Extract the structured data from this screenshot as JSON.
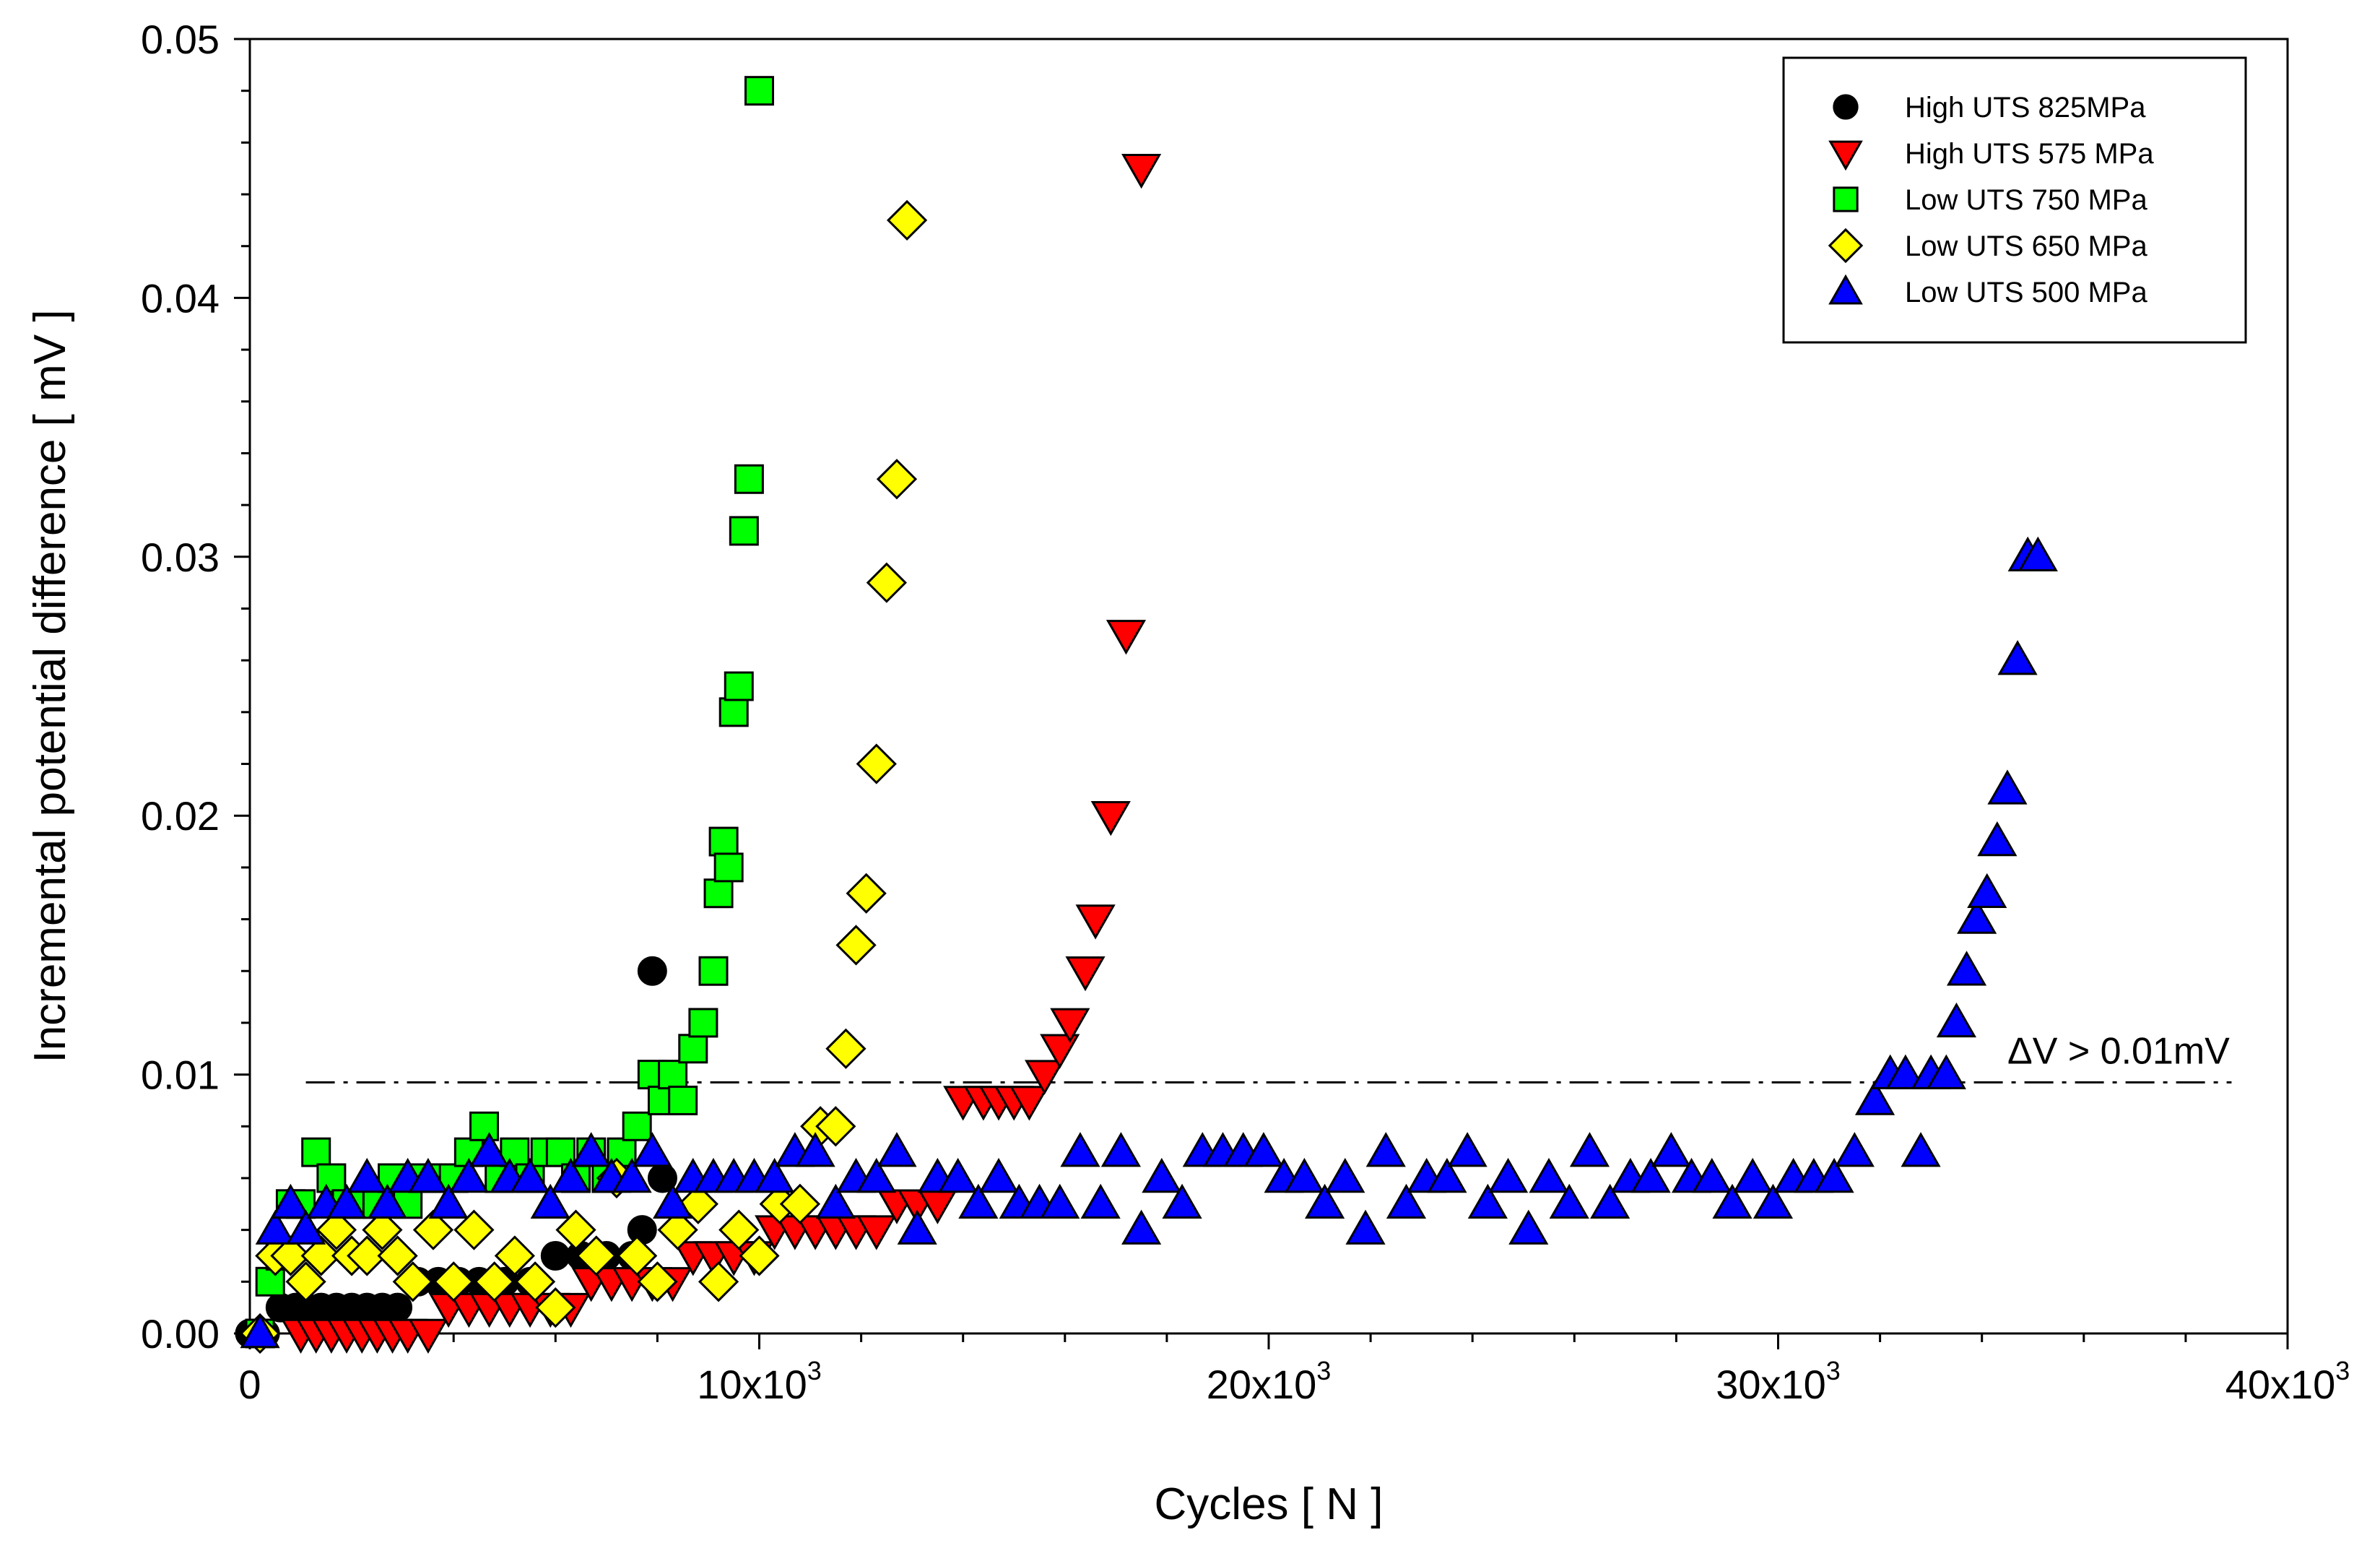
{
  "chart_data": {
    "type": "scatter",
    "title": "",
    "xlabel": "Cycles [ N ]",
    "ylabel": "Incremental potential difference  [ mV ]",
    "xlim": [
      0,
      40000
    ],
    "ylim": [
      0,
      0.05
    ],
    "x_ticks": [
      {
        "value": 0,
        "label": "0",
        "exp": ""
      },
      {
        "value": 10000,
        "label": "10x10",
        "exp": "3"
      },
      {
        "value": 20000,
        "label": "20x10",
        "exp": "3"
      },
      {
        "value": 30000,
        "label": "30x10",
        "exp": "3"
      },
      {
        "value": 40000,
        "label": "40x10",
        "exp": "3"
      }
    ],
    "y_ticks": [
      {
        "value": 0,
        "label": "0.00"
      },
      {
        "value": 0.01,
        "label": "0.01"
      },
      {
        "value": 0.02,
        "label": "0.02"
      },
      {
        "value": 0.03,
        "label": "0.03"
      },
      {
        "value": 0.04,
        "label": "0.04"
      },
      {
        "value": 0.05,
        "label": "0.05"
      }
    ],
    "threshold": {
      "y": 0.0097,
      "x_start": 1100,
      "x_end": 38900,
      "label": "ΔV > 0.01mV"
    },
    "legend_position": "top-right",
    "series": [
      {
        "name": "High UTS 825MPa",
        "marker": "circle",
        "color": "#000000",
        "x": [
          0,
          300,
          600,
          900,
          1100,
          1400,
          1700,
          2000,
          2300,
          2600,
          2900,
          3300,
          3700,
          4100,
          4500,
          5000,
          5500,
          6000,
          6500,
          7000,
          7500,
          7700,
          7900,
          8100
        ],
        "y": [
          0,
          0,
          0.001,
          0.001,
          0.001,
          0.001,
          0.001,
          0.001,
          0.001,
          0.001,
          0.001,
          0.002,
          0.002,
          0.002,
          0.002,
          0.002,
          0.002,
          0.003,
          0.003,
          0.003,
          0.003,
          0.004,
          0.014,
          0.006
        ]
      },
      {
        "name": "High UTS 575 MPa",
        "marker": "triangle-down",
        "color": "#ff0000",
        "x": [
          1000,
          1300,
          1600,
          1900,
          2200,
          2500,
          2800,
          3100,
          3500,
          3900,
          4300,
          4700,
          5100,
          5500,
          5900,
          6300,
          6700,
          7100,
          7500,
          7900,
          8300,
          8700,
          9100,
          9500,
          9900,
          10300,
          10700,
          11100,
          11500,
          11900,
          12300,
          12700,
          13100,
          13500,
          14000,
          14400,
          14700,
          15000,
          15300,
          15600,
          15900,
          16100,
          16400,
          16600,
          16900,
          17200,
          17500
        ],
        "y": [
          0,
          0,
          0,
          0,
          0,
          0,
          0,
          0,
          0,
          0.001,
          0.001,
          0.001,
          0.001,
          0.001,
          0.001,
          0.001,
          0.002,
          0.002,
          0.002,
          0.002,
          0.002,
          0.003,
          0.003,
          0.003,
          0.003,
          0.004,
          0.004,
          0.004,
          0.004,
          0.004,
          0.004,
          0.005,
          0.005,
          0.005,
          0.009,
          0.009,
          0.009,
          0.009,
          0.009,
          0.01,
          0.011,
          0.012,
          0.014,
          0.016,
          0.02,
          0.027,
          0.045
        ]
      },
      {
        "name": "Low UTS 750 MPa",
        "marker": "square",
        "color": "#00ff00",
        "x": [
          200,
          400,
          600,
          800,
          1000,
          1300,
          1600,
          1900,
          2200,
          2500,
          2800,
          3100,
          3400,
          3700,
          4000,
          4300,
          4600,
          4900,
          5200,
          5500,
          5800,
          6100,
          6400,
          6700,
          7000,
          7300,
          7600,
          7900,
          8100,
          8300,
          8500,
          8700,
          8900,
          9100,
          9200,
          9300,
          9400,
          9500,
          9600,
          9700,
          9800,
          10000
        ],
        "y": [
          0,
          0.002,
          0.003,
          0.005,
          0.005,
          0.007,
          0.006,
          0.005,
          0.005,
          0.005,
          0.006,
          0.005,
          0.006,
          0.006,
          0.006,
          0.007,
          0.008,
          0.006,
          0.007,
          0.006,
          0.007,
          0.007,
          0.006,
          0.007,
          0.006,
          0.007,
          0.008,
          0.01,
          0.009,
          0.01,
          0.009,
          0.011,
          0.012,
          0.014,
          0.017,
          0.019,
          0.018,
          0.024,
          0.025,
          0.031,
          0.033,
          0.048
        ]
      },
      {
        "name": "Low UTS 650 MPa",
        "marker": "diamond",
        "color": "#ffff00",
        "x": [
          200,
          500,
          800,
          1100,
          1400,
          1700,
          2000,
          2300,
          2600,
          2900,
          3200,
          3600,
          4000,
          4400,
          4800,
          5200,
          5600,
          6000,
          6400,
          6800,
          7200,
          7600,
          8000,
          8400,
          8800,
          9200,
          9600,
          10000,
          10400,
          10800,
          11200,
          11500,
          11700,
          11900,
          12100,
          12300,
          12500,
          12700,
          12900
        ],
        "y": [
          0,
          0.003,
          0.003,
          0.002,
          0.003,
          0.004,
          0.003,
          0.003,
          0.004,
          0.003,
          0.002,
          0.004,
          0.002,
          0.004,
          0.002,
          0.003,
          0.002,
          0.001,
          0.004,
          0.003,
          0.006,
          0.003,
          0.002,
          0.004,
          0.005,
          0.002,
          0.004,
          0.003,
          0.005,
          0.005,
          0.008,
          0.008,
          0.011,
          0.015,
          0.017,
          0.022,
          0.029,
          0.033,
          0.043
        ]
      },
      {
        "name": "Low UTS 500 MPa",
        "marker": "triangle-up",
        "color": "#0000ff",
        "x": [
          200,
          500,
          800,
          1100,
          1500,
          1900,
          2300,
          2700,
          3100,
          3500,
          3900,
          4300,
          4700,
          5100,
          5500,
          5900,
          6300,
          6700,
          7100,
          7500,
          7900,
          8300,
          8700,
          9100,
          9500,
          9900,
          10300,
          10700,
          11100,
          11500,
          11900,
          12300,
          12700,
          13100,
          13500,
          13900,
          14300,
          14700,
          15100,
          15500,
          15900,
          16300,
          16700,
          17100,
          17500,
          17900,
          18300,
          18700,
          19100,
          19500,
          19900,
          20300,
          20700,
          21100,
          21500,
          21900,
          22300,
          22700,
          23100,
          23500,
          23900,
          24300,
          24700,
          25100,
          25500,
          25900,
          26300,
          26700,
          27100,
          27500,
          27900,
          28300,
          28700,
          29100,
          29500,
          29900,
          30300,
          30700,
          31100,
          31500,
          31900,
          32200,
          32500,
          32800,
          33000,
          33300,
          33500,
          33700,
          33900,
          34100,
          34300,
          34500,
          34700,
          34900,
          35100
        ],
        "y": [
          0,
          0.004,
          0.005,
          0.004,
          0.005,
          0.005,
          0.006,
          0.005,
          0.006,
          0.006,
          0.005,
          0.006,
          0.007,
          0.006,
          0.006,
          0.005,
          0.006,
          0.007,
          0.006,
          0.006,
          0.007,
          0.005,
          0.006,
          0.006,
          0.006,
          0.006,
          0.006,
          0.007,
          0.007,
          0.005,
          0.006,
          0.006,
          0.007,
          0.004,
          0.006,
          0.006,
          0.005,
          0.006,
          0.005,
          0.005,
          0.005,
          0.007,
          0.005,
          0.007,
          0.004,
          0.006,
          0.005,
          0.007,
          0.007,
          0.007,
          0.007,
          0.006,
          0.006,
          0.005,
          0.006,
          0.004,
          0.007,
          0.005,
          0.006,
          0.006,
          0.007,
          0.005,
          0.006,
          0.004,
          0.006,
          0.005,
          0.007,
          0.005,
          0.006,
          0.006,
          0.007,
          0.006,
          0.006,
          0.005,
          0.006,
          0.005,
          0.006,
          0.006,
          0.006,
          0.007,
          0.009,
          0.01,
          0.01,
          0.007,
          0.01,
          0.01,
          0.012,
          0.014,
          0.016,
          0.017,
          0.019,
          0.021,
          0.026,
          0.03,
          0.03
        ]
      }
    ]
  }
}
